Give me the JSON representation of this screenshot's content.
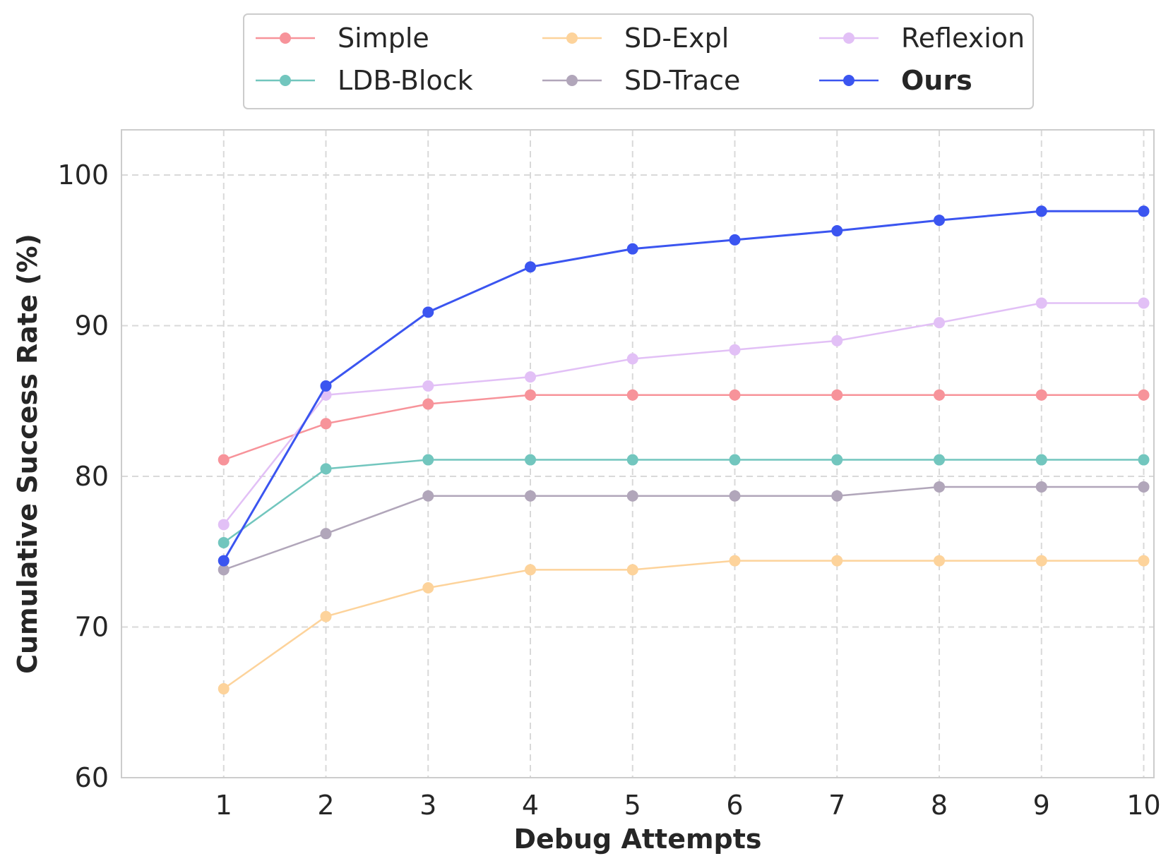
{
  "chart_data": {
    "type": "line",
    "title": "",
    "xlabel": "Debug Attempts",
    "ylabel": "Cumulative Success Rate (%)",
    "x": [
      1,
      2,
      3,
      4,
      5,
      6,
      7,
      8,
      9,
      10
    ],
    "xlim": [
      0,
      10.1
    ],
    "ylim": [
      60,
      103
    ],
    "yticks": [
      60,
      70,
      80,
      90,
      100
    ],
    "grid": true,
    "legend_position": "top-center",
    "series": [
      {
        "name": "Simple",
        "color": "#f7939a",
        "bold": false,
        "values": [
          81.1,
          83.5,
          84.8,
          85.4,
          85.4,
          85.4,
          85.4,
          85.4,
          85.4,
          85.4
        ]
      },
      {
        "name": "LDB-Block",
        "color": "#72c6be",
        "bold": false,
        "values": [
          75.6,
          80.5,
          81.1,
          81.1,
          81.1,
          81.1,
          81.1,
          81.1,
          81.1,
          81.1
        ]
      },
      {
        "name": "SD-Expl",
        "color": "#fdd39b",
        "bold": false,
        "values": [
          65.9,
          70.7,
          72.6,
          73.8,
          73.8,
          74.4,
          74.4,
          74.4,
          74.4,
          74.4
        ]
      },
      {
        "name": "SD-Trace",
        "color": "#b1a6ba",
        "bold": false,
        "values": [
          73.8,
          76.2,
          78.7,
          78.7,
          78.7,
          78.7,
          78.7,
          79.3,
          79.3,
          79.3
        ]
      },
      {
        "name": "Reflexion",
        "color": "#e2c0f6",
        "bold": false,
        "values": [
          76.8,
          85.4,
          86.0,
          86.6,
          87.8,
          88.4,
          89.0,
          90.2,
          91.5,
          91.5
        ]
      },
      {
        "name": "Ours",
        "color": "#3b55f0",
        "bold": true,
        "values": [
          74.4,
          86.0,
          90.9,
          93.9,
          95.1,
          95.7,
          96.3,
          97.0,
          97.6,
          97.6
        ]
      }
    ]
  }
}
